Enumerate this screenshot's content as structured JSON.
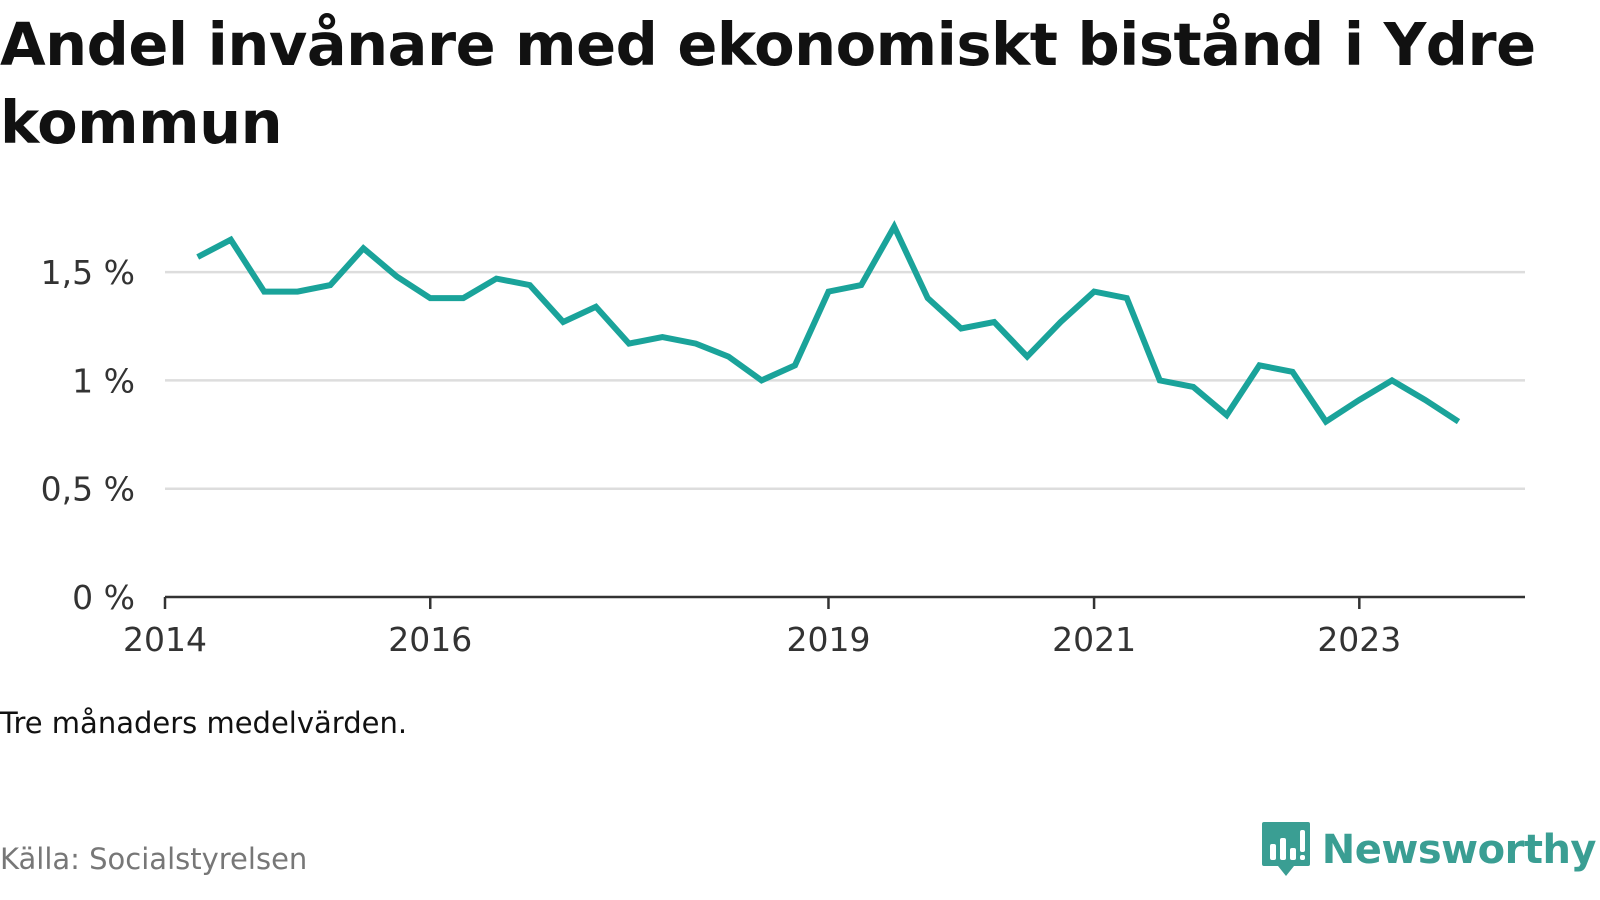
{
  "title": "Andel invånare med ekonomiskt bistånd i Ydre kommun",
  "note": "Tre månaders medelvärden.",
  "source": "Källa: Socialstyrelsen",
  "brand": {
    "name": "Newsworthy",
    "icon": "newsworthy-logo-icon",
    "color": "#3a9e93"
  },
  "colors": {
    "line": "#1aa39a",
    "grid": "#dddddd",
    "axis": "#333333"
  },
  "chart_data": {
    "type": "line",
    "title": "Andel invånare med ekonomiskt bistånd i Ydre kommun",
    "xlabel": "",
    "ylabel": "",
    "ylim": [
      0,
      1.75
    ],
    "xlim": [
      "2014-01-01",
      "2024-04-01"
    ],
    "grid": true,
    "yticks": [
      0,
      0.5,
      1,
      1.5
    ],
    "ytick_labels": [
      "0 %",
      "0,5 %",
      "1 %",
      "1,5 %"
    ],
    "xticks": [
      "2014-01-01",
      "2016-01-01",
      "2019-01-01",
      "2021-01-01",
      "2023-01-01"
    ],
    "xtick_labels": [
      "2014",
      "2016",
      "2019",
      "2021",
      "2023"
    ],
    "series": [
      {
        "x": [
          "2014-04-01",
          "2014-07-01",
          "2014-10-01",
          "2015-01-01",
          "2015-04-01",
          "2015-07-01",
          "2015-10-01",
          "2016-01-01",
          "2016-04-01",
          "2016-07-01",
          "2016-10-01",
          "2017-01-01",
          "2017-04-01",
          "2017-07-01",
          "2017-10-01",
          "2018-01-01",
          "2018-04-01",
          "2018-07-01",
          "2018-10-01",
          "2019-01-01",
          "2019-04-01",
          "2019-07-01",
          "2019-10-01",
          "2020-01-01",
          "2020-04-01",
          "2020-07-01",
          "2020-10-01",
          "2021-01-01",
          "2021-04-01",
          "2021-07-01",
          "2021-10-01",
          "2022-01-01",
          "2022-04-01",
          "2022-07-01",
          "2022-10-01",
          "2023-01-01",
          "2023-04-01",
          "2023-07-01",
          "2023-10-01"
        ],
        "values": [
          1.57,
          1.65,
          1.41,
          1.41,
          1.44,
          1.61,
          1.48,
          1.38,
          1.38,
          1.47,
          1.44,
          1.27,
          1.34,
          1.17,
          1.2,
          1.17,
          1.11,
          1.0,
          1.07,
          1.41,
          1.44,
          1.71,
          1.38,
          1.24,
          1.27,
          1.11,
          1.27,
          1.41,
          1.38,
          1.0,
          0.97,
          0.84,
          1.07,
          1.04,
          0.81,
          0.91,
          1.0,
          0.91,
          0.81
        ]
      }
    ]
  }
}
